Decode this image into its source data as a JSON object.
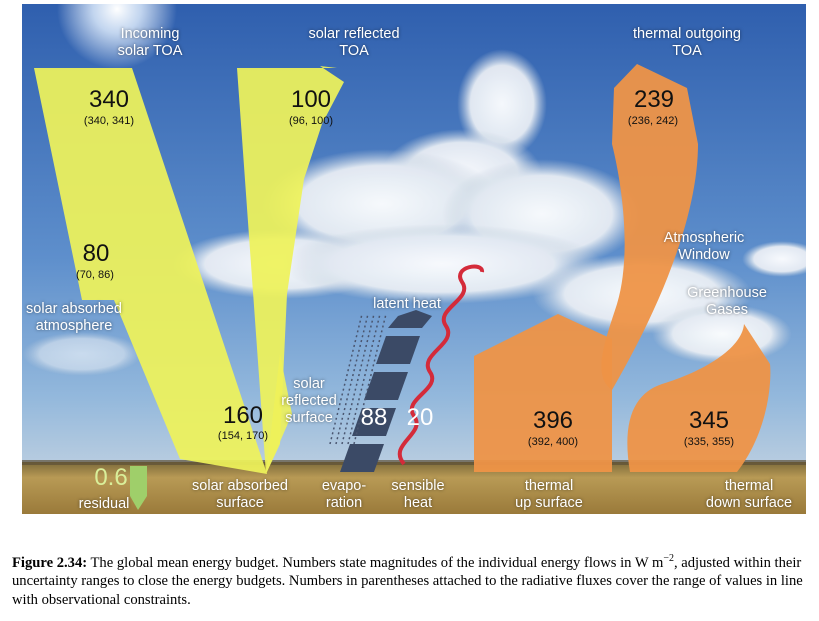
{
  "diagram": {
    "incoming_label": "Incoming\nsolar TOA",
    "incoming_value": "340",
    "incoming_range": "(340, 341)",
    "reflected_toa_label": "solar reflected\nTOA",
    "reflected_toa_value": "100",
    "reflected_toa_range": "(96, 100)",
    "thermal_out_label": "thermal outgoing\nTOA",
    "thermal_out_value": "239",
    "thermal_out_range": "(236, 242)",
    "abs_atm_value": "80",
    "abs_atm_range": "(70, 86)",
    "abs_atm_label": "solar absorbed\natmosphere",
    "atm_window_label": "Atmospheric\nWindow",
    "greenhouse_label": "Greenhouse\nGases",
    "latent_label": "latent heat",
    "reflected_surface_label": "solar\nreflected\nsurface",
    "abs_surface_value": "160",
    "abs_surface_range": "(154, 170)",
    "abs_surface_label": "solar absorbed\nsurface",
    "evap_value": "88",
    "evap_label": "evapo-\nration",
    "sensible_value": "20",
    "sensible_label": "sensible\nheat",
    "thermal_up_value": "396",
    "thermal_up_range": "(392, 400)",
    "thermal_up_label": "thermal\nup surface",
    "back_value": "345",
    "back_range": "(335, 355)",
    "back_label": "thermal\ndown surface",
    "residual_value": "0.6",
    "residual_label": "residual"
  },
  "colors": {
    "solar": "#eef25a",
    "thermal": "#ee9447",
    "sensible": "#d42b3a",
    "latent": "#3b4a66",
    "residual": "#9fcf6a"
  },
  "caption": {
    "label": "Figure 2.34:",
    "text": " The global mean energy budget. Numbers state magnitudes of the individual energy flows in W m",
    "superscript": "−2",
    "text2": ", adjusted within their uncertainty ranges to close the energy budgets. Numbers in parentheses attached to the radiative fluxes cover the range of values in line with observational constraints."
  }
}
